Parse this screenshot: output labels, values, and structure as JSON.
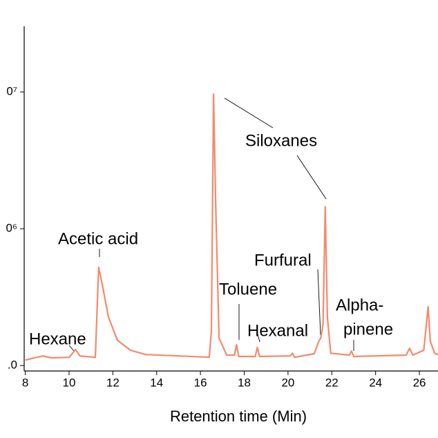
{
  "chart_data": {
    "type": "line",
    "x_label": "Retention time (Min)",
    "xlim": [
      7.95,
      26.85
    ],
    "xticks": [
      8,
      10,
      12,
      14,
      16,
      18,
      20,
      22,
      24,
      26
    ],
    "ylim": [
      -200000,
      12400000
    ],
    "yticks": [
      {
        "value": 0,
        "label": ".0"
      },
      {
        "value": 5000000,
        "label": "0⁶"
      },
      {
        "value": 10000000,
        "label": "0⁷"
      }
    ],
    "series": [
      {
        "color": "#f4896b",
        "x": [
          8.0,
          8.8,
          9.2,
          10.0,
          10.3,
          10.5,
          11.2,
          11.35,
          11.5,
          11.8,
          12.2,
          12.8,
          13.5,
          15.0,
          16.4,
          16.5,
          16.6,
          16.7,
          16.85,
          17.2,
          17.55,
          17.65,
          17.75,
          18.5,
          18.6,
          18.7,
          20.1,
          20.2,
          20.3,
          21.2,
          21.4,
          21.5,
          21.6,
          21.7,
          21.8,
          21.95,
          22.8,
          22.9,
          23.0,
          25.4,
          25.55,
          25.7,
          26.2,
          26.4,
          26.5,
          26.7,
          26.85
        ],
        "values": [
          200000,
          350000,
          280000,
          300000,
          580000,
          350000,
          300000,
          3590000,
          3030000,
          1770000,
          930000,
          560000,
          400000,
          350000,
          300000,
          1260000,
          9920000,
          5800000,
          1000000,
          380000,
          380000,
          760000,
          330000,
          330000,
          660000,
          330000,
          350000,
          450000,
          300000,
          430000,
          880000,
          1010000,
          1520000,
          5800000,
          1770000,
          450000,
          380000,
          530000,
          330000,
          380000,
          630000,
          380000,
          560000,
          2150000,
          880000,
          450000,
          400000
        ]
      }
    ],
    "annotations": [
      "Hexane",
      "Acetic acid",
      "Siloxanes",
      "Toluene",
      "Hexanal",
      "Furfural",
      "Alpha-",
      "pinene"
    ]
  }
}
